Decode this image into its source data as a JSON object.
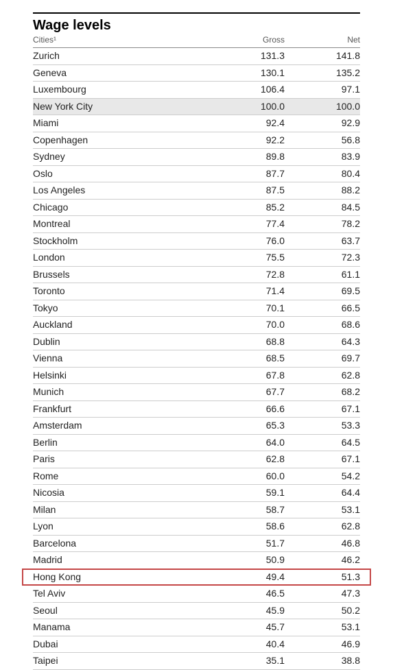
{
  "title": "Wage levels",
  "columns": {
    "city": "Cities¹",
    "gross": "Gross",
    "net": "Net"
  },
  "rows": [
    {
      "city": "Zurich",
      "gross": "131.3",
      "net": "141.8"
    },
    {
      "city": "Geneva",
      "gross": "130.1",
      "net": "135.2"
    },
    {
      "city": "Luxembourg",
      "gross": "106.4",
      "net": "97.1"
    },
    {
      "city": "New York City",
      "gross": "100.0",
      "net": "100.0",
      "baseline": true
    },
    {
      "city": "Miami",
      "gross": "92.4",
      "net": "92.9"
    },
    {
      "city": "Copenhagen",
      "gross": "92.2",
      "net": "56.8"
    },
    {
      "city": "Sydney",
      "gross": "89.8",
      "net": "83.9"
    },
    {
      "city": "Oslo",
      "gross": "87.7",
      "net": "80.4"
    },
    {
      "city": "Los Angeles",
      "gross": "87.5",
      "net": "88.2"
    },
    {
      "city": "Chicago",
      "gross": "85.2",
      "net": "84.5"
    },
    {
      "city": "Montreal",
      "gross": "77.4",
      "net": "78.2"
    },
    {
      "city": "Stockholm",
      "gross": "76.0",
      "net": "63.7"
    },
    {
      "city": "London",
      "gross": "75.5",
      "net": "72.3"
    },
    {
      "city": "Brussels",
      "gross": "72.8",
      "net": "61.1"
    },
    {
      "city": "Toronto",
      "gross": "71.4",
      "net": "69.5"
    },
    {
      "city": "Tokyo",
      "gross": "70.1",
      "net": "66.5"
    },
    {
      "city": "Auckland",
      "gross": "70.0",
      "net": "68.6"
    },
    {
      "city": "Dublin",
      "gross": "68.8",
      "net": "64.3"
    },
    {
      "city": "Vienna",
      "gross": "68.5",
      "net": "69.7"
    },
    {
      "city": "Helsinki",
      "gross": "67.8",
      "net": "62.8"
    },
    {
      "city": "Munich",
      "gross": "67.7",
      "net": "68.2"
    },
    {
      "city": "Frankfurt",
      "gross": "66.6",
      "net": "67.1"
    },
    {
      "city": "Amsterdam",
      "gross": "65.3",
      "net": "53.3"
    },
    {
      "city": "Berlin",
      "gross": "64.0",
      "net": "64.5"
    },
    {
      "city": "Paris",
      "gross": "62.8",
      "net": "67.1"
    },
    {
      "city": "Rome",
      "gross": "60.0",
      "net": "54.2"
    },
    {
      "city": "Nicosia",
      "gross": "59.1",
      "net": "64.4"
    },
    {
      "city": "Milan",
      "gross": "58.7",
      "net": "53.1"
    },
    {
      "city": "Lyon",
      "gross": "58.6",
      "net": "62.8"
    },
    {
      "city": "Barcelona",
      "gross": "51.7",
      "net": "46.8"
    },
    {
      "city": "Madrid",
      "gross": "50.9",
      "net": "46.2"
    },
    {
      "city": "Hong Kong",
      "gross": "49.4",
      "net": "51.3",
      "highlighted": true
    },
    {
      "city": "Tel Aviv",
      "gross": "46.5",
      "net": "47.3"
    },
    {
      "city": "Seoul",
      "gross": "45.9",
      "net": "50.2"
    },
    {
      "city": "Manama",
      "gross": "45.7",
      "net": "53.1"
    },
    {
      "city": "Dubai",
      "gross": "40.4",
      "net": "46.9"
    },
    {
      "city": "Taipei",
      "gross": "35.1",
      "net": "38.8"
    }
  ],
  "style": {
    "title_fontsize": 20,
    "header_fontsize": 12,
    "row_fontsize": 14,
    "text_color": "#222222",
    "header_color": "#555555",
    "border_color": "#cccccc",
    "top_rule_color": "#000000",
    "baseline_bg": "#e8e8e8",
    "highlight_border": "#c44545",
    "background": "#ffffff"
  }
}
